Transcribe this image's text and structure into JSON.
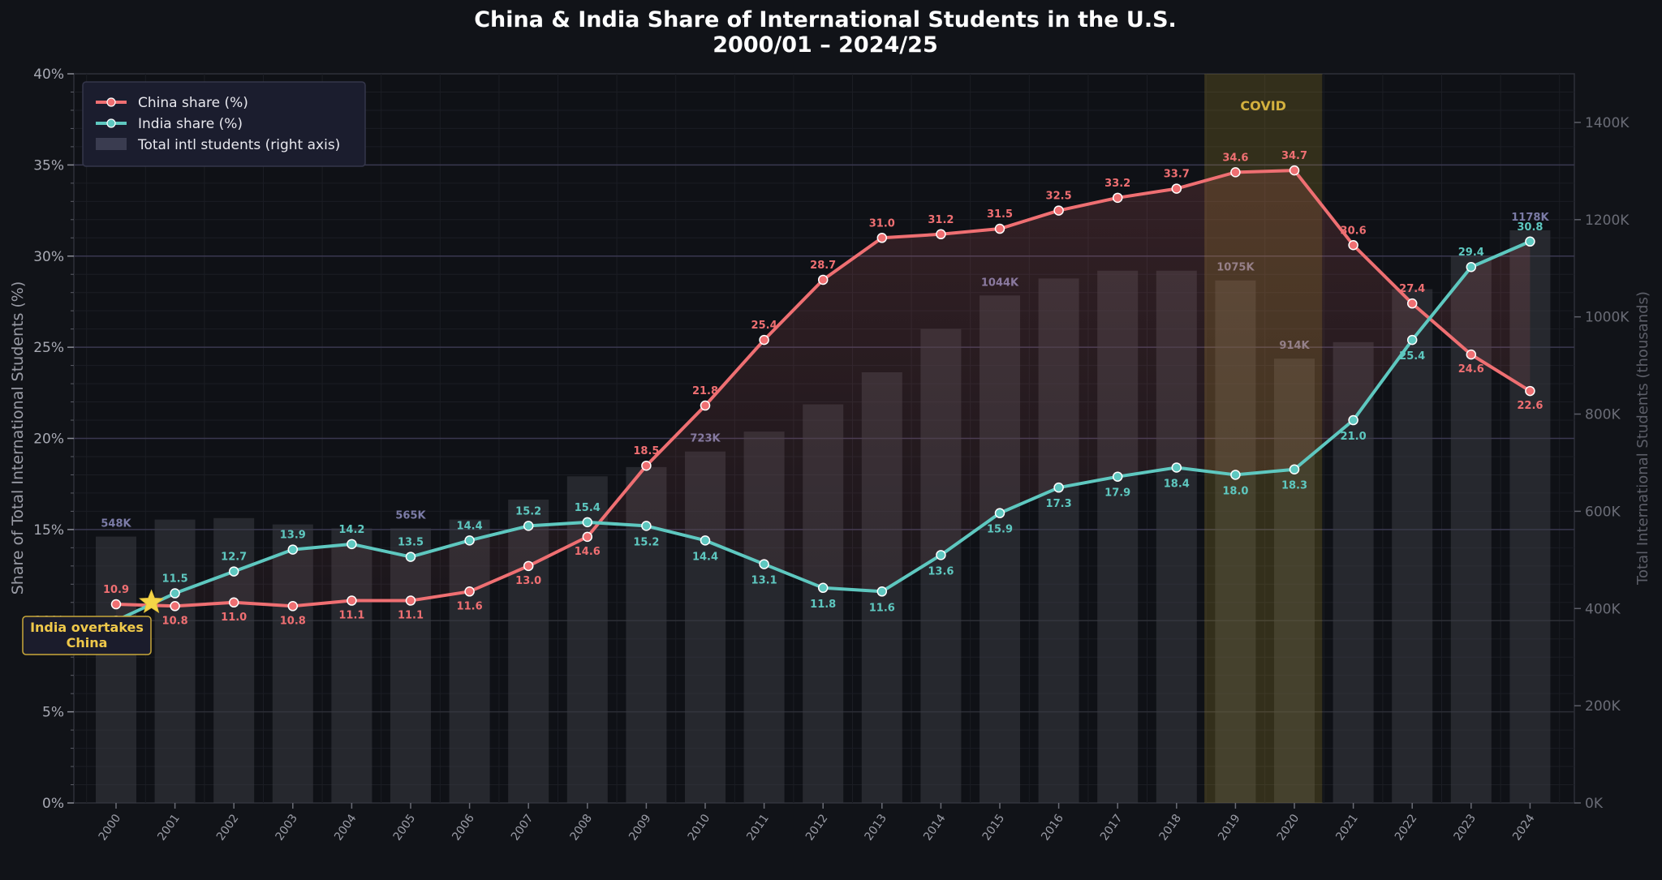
{
  "chart_data": {
    "type": "line",
    "title": "China & India Share of International Students in the U.S.",
    "subtitle": "2000/01 – 2024/25",
    "ylabel": "Share of Total International Students (%)",
    "y2label": "Total International Students (thousands)",
    "ylim": [
      0,
      40
    ],
    "y2lim": [
      0,
      1500
    ],
    "yticks": [
      "0%",
      "5%",
      "10%",
      "15%",
      "20%",
      "25%",
      "30%",
      "35%",
      "40%"
    ],
    "y2ticks": [
      "0K",
      "200K",
      "400K",
      "600K",
      "800K",
      "1000K",
      "1200K",
      "1400K"
    ],
    "x": [
      "2000",
      "2001",
      "2002",
      "2003",
      "2004",
      "2005",
      "2006",
      "2007",
      "2008",
      "2009",
      "2010",
      "2011",
      "2012",
      "2013",
      "2014",
      "2015",
      "2016",
      "2017",
      "2018",
      "2019",
      "2020",
      "2021",
      "2022",
      "2023",
      "2024"
    ],
    "grid": true,
    "legend_position": "top-left",
    "colors": {
      "china": "#ef6f72",
      "india": "#5ec8c0",
      "bars": "#3a3c44",
      "covid": "#b8992e",
      "star": "#f5d547"
    },
    "series": [
      {
        "key": "china",
        "name": "China share (%)",
        "values": [
          10.9,
          10.8,
          11.0,
          10.8,
          11.1,
          11.1,
          11.6,
          13.0,
          14.6,
          18.5,
          21.8,
          25.4,
          28.7,
          31.0,
          31.2,
          31.5,
          32.5,
          33.2,
          33.7,
          34.6,
          34.7,
          30.6,
          27.4,
          24.6,
          22.6
        ],
        "labels": [
          "10.9",
          "10.8",
          "11.0",
          "10.8",
          "11.1",
          "11.1",
          "11.6",
          "13.0",
          "14.6",
          "18.5",
          "21.8",
          "25.4",
          "28.7",
          "31.0",
          "31.2",
          "31.5",
          "32.5",
          "33.2",
          "33.7",
          "34.6",
          "34.7",
          "30.6",
          "27.4",
          "24.6",
          "22.6"
        ]
      },
      {
        "key": "india",
        "name": "India share (%)",
        "values": [
          10.0,
          11.5,
          12.7,
          13.9,
          14.2,
          13.5,
          14.4,
          15.2,
          15.4,
          15.2,
          14.4,
          13.1,
          11.8,
          11.6,
          13.6,
          15.9,
          17.3,
          17.9,
          18.4,
          18.0,
          18.3,
          21.0,
          25.4,
          29.4,
          30.8
        ],
        "labels": [
          "10.0",
          "11.5",
          "12.7",
          "13.9",
          "14.2",
          "13.5",
          "14.4",
          "15.2",
          "15.4",
          "15.2",
          "14.4",
          "13.1",
          "11.8",
          "11.6",
          "13.6",
          "15.9",
          "17.3",
          "17.9",
          "18.4",
          "18.0",
          "18.3",
          "21.0",
          "25.4",
          "29.4",
          "30.8"
        ]
      }
    ],
    "bars": {
      "name": "Total intl students (right axis)",
      "values": [
        548,
        583,
        586,
        573,
        565,
        565,
        583,
        624,
        672,
        691,
        723,
        764,
        820,
        886,
        975,
        1044,
        1079,
        1095,
        1095,
        1075,
        914,
        948,
        1057,
        1126,
        1178
      ],
      "labeled": [
        {
          "index": 0,
          "text": "548K"
        },
        {
          "index": 5,
          "text": "565K"
        },
        {
          "index": 10,
          "text": "723K"
        },
        {
          "index": 15,
          "text": "1044K"
        },
        {
          "index": 19,
          "text": "1075K"
        },
        {
          "index": 20,
          "text": "914K"
        },
        {
          "index": 24,
          "text": "1178K"
        }
      ]
    },
    "covid": {
      "label": "COVID",
      "from_index": 19,
      "to_index": 20
    },
    "annotation": {
      "line1": "India overtakes",
      "line2": "China",
      "at_x": 0.6,
      "at_y": 11.0
    }
  }
}
